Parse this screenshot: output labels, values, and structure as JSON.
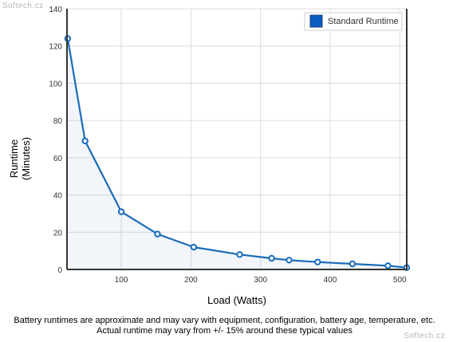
{
  "watermark": "Softech.cz",
  "notes": {
    "line1": "Battery runtimes are approximate and may vary with equipment, configuration, battery age, temperature, etc.",
    "line2": "Actual runtime may vary from +/- 15% around these typical values"
  },
  "colors": {
    "series": "#1a6bb8",
    "legend_swatch": "#0b5cc0",
    "grid": "#dcdcdc",
    "axis": "#333333"
  },
  "chart_data": {
    "type": "line",
    "title": "",
    "xlabel": "Load (Watts)",
    "ylabel_lines": [
      "Runtime",
      "(Minutes)"
    ],
    "xlim": [
      22,
      510
    ],
    "ylim": [
      0,
      140
    ],
    "xticks": [
      100,
      200,
      300,
      400,
      500
    ],
    "yticks": [
      0,
      20,
      40,
      60,
      80,
      100,
      120,
      140
    ],
    "grid": true,
    "legend_position": "top-right",
    "series": [
      {
        "name": "Standard Runtime",
        "x": [
          23,
          48,
          100,
          152,
          204,
          270,
          316,
          341,
          382,
          432,
          483,
          510
        ],
        "y": [
          124,
          69,
          31,
          19,
          12,
          8,
          6,
          5,
          4,
          3,
          2,
          1
        ]
      }
    ]
  }
}
